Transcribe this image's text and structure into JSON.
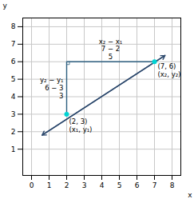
{
  "chart_data": {
    "type": "line",
    "xlabel": "x",
    "ylabel": "y",
    "xlim": [
      -0.5,
      8.5
    ],
    "ylim": [
      -0.5,
      8.5
    ],
    "xticks": [
      0,
      1,
      2,
      3,
      4,
      5,
      6,
      7,
      8
    ],
    "yticks": [
      1,
      2,
      3,
      4,
      5,
      6,
      7,
      8
    ],
    "grid": true,
    "series": [
      {
        "type": "line",
        "color": "#2e4a6e",
        "marker": "arrow",
        "x": [
          0.6,
          7.6
        ],
        "values": [
          1.8,
          6.36
        ]
      },
      {
        "type": "line",
        "color": "#2e6080",
        "x": [
          2,
          2,
          7
        ],
        "values": [
          3,
          6,
          6
        ]
      },
      {
        "type": "scatter",
        "color": "#00d4d4",
        "marker": "o",
        "x": [
          2,
          7
        ],
        "values": [
          3,
          6
        ]
      }
    ],
    "annotations": [
      {
        "text": "(2, 3)\n(x₁, y₁)",
        "x": 2,
        "y": 3
      },
      {
        "text": "(7, 6)\n(x₂, y₂)",
        "x": 7,
        "y": 6
      },
      {
        "text": "y₂ − y₁\n6 − 3\n3",
        "x": 2,
        "y": 4.5
      },
      {
        "text": "x₂ − x₁\n7 − 2\n5",
        "x": 4.5,
        "y": 6
      }
    ]
  }
}
